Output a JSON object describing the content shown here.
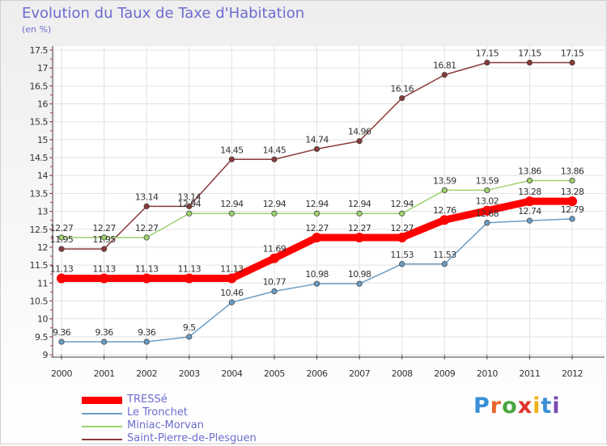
{
  "header": {
    "title": "Evolution du Taux de Taxe d'Habitation",
    "subtitle": "(en %)"
  },
  "logo": {
    "text": "Proxiti",
    "colors": [
      "#3a8fd6",
      "#e8672a",
      "#4aa640",
      "#e0342c",
      "#f2b21b",
      "#3a8fd6",
      "#7a4bb3"
    ]
  },
  "chart_data": {
    "type": "line",
    "title": "Evolution du Taux de Taxe d'Habitation",
    "subtitle": "(en %)",
    "xlabel": "",
    "ylabel": "",
    "x": [
      "2000",
      "2001",
      "2002",
      "2003",
      "2004",
      "2005",
      "2006",
      "2007",
      "2008",
      "2009",
      "2010",
      "2011",
      "2012"
    ],
    "ylim": [
      9,
      17.5
    ],
    "yticks": [
      "9",
      "9.5",
      "10",
      "10.5",
      "11",
      "11.5",
      "12",
      "12.5",
      "13",
      "13.5",
      "14",
      "14.5",
      "15",
      "15.5",
      "16",
      "16.5",
      "17",
      "17.5"
    ],
    "grid": true,
    "legend_position": "bottom-left",
    "series": [
      {
        "name": "TRESSé",
        "color": "#ff0000",
        "values": [
          11.13,
          11.13,
          11.13,
          11.13,
          11.13,
          11.69,
          12.27,
          12.27,
          12.27,
          12.76,
          13.02,
          13.28,
          13.28
        ],
        "labels": [
          "11.13",
          "11.13",
          "11.13",
          "11.13",
          "11.13",
          "11.69",
          "12.27",
          "12.27",
          "12.27",
          "12.76",
          "13.02",
          "13.28",
          "13.28"
        ]
      },
      {
        "name": "Le Tronchet",
        "color": "#6a9ec6",
        "values": [
          9.36,
          9.36,
          9.36,
          9.5,
          10.46,
          10.77,
          10.98,
          10.98,
          11.53,
          11.53,
          12.68,
          12.74,
          12.79
        ],
        "labels": [
          "9.36",
          "9.36",
          "9.36",
          "9.5",
          "10.46",
          "10.77",
          "10.98",
          "10.98",
          "11.53",
          "11.53",
          "12.68",
          "12.74",
          "12.79"
        ]
      },
      {
        "name": "Miniac-Morvan",
        "color": "#9ed26d",
        "values": [
          12.27,
          12.27,
          12.27,
          12.94,
          12.94,
          12.94,
          12.94,
          12.94,
          12.94,
          13.59,
          13.59,
          13.86,
          13.86
        ],
        "labels": [
          "12.27",
          "12.27",
          "12.27",
          "12.94",
          "12.94",
          "12.94",
          "12.94",
          "12.94",
          "12.94",
          "13.59",
          "13.59",
          "13.86",
          "13.86"
        ]
      },
      {
        "name": "Saint-Pierre-de-Plesguen",
        "color": "#8a3a3a",
        "values": [
          11.95,
          11.95,
          13.14,
          13.14,
          14.45,
          14.45,
          14.74,
          14.96,
          16.16,
          16.81,
          17.15,
          17.15,
          17.15
        ],
        "labels": [
          "11.95",
          "11.95",
          "13.14",
          "13.14",
          "14.45",
          "14.45",
          "14.74",
          "14.96",
          "16.16",
          "16.81",
          "17.15",
          "17.15",
          "17.15"
        ]
      }
    ]
  }
}
